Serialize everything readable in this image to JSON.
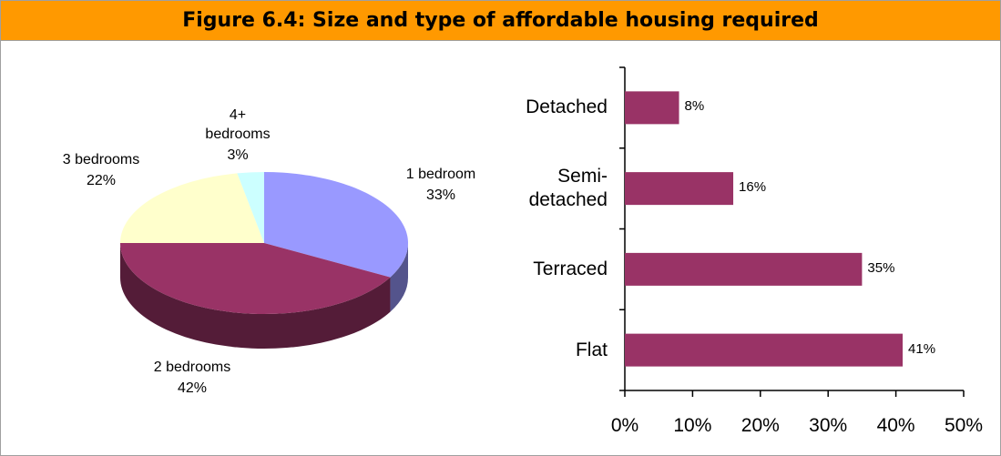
{
  "title": "Figure 6.4: Size and type of affordable housing required",
  "chart_data": [
    {
      "type": "pie",
      "categories": [
        "1 bedroom",
        "2 bedrooms",
        "3 bedrooms",
        "4+ bedrooms"
      ],
      "values": [
        33,
        42,
        22,
        3
      ],
      "value_labels": [
        "33%",
        "42%",
        "22%",
        "3%"
      ],
      "colors": [
        "#9999ff",
        "#993366",
        "#ffffcc",
        "#ccffff"
      ]
    },
    {
      "type": "bar",
      "orientation": "horizontal",
      "categories": [
        "Flat",
        "Terraced",
        "Semi-detached",
        "Detached"
      ],
      "values": [
        41,
        35,
        16,
        8
      ],
      "value_labels": [
        "41%",
        "35%",
        "16%",
        "8%"
      ],
      "color": "#993366",
      "xlim": [
        0,
        50
      ],
      "xticks": [
        {
          "value": 0,
          "label": "0%"
        },
        {
          "value": 10,
          "label": "10%"
        },
        {
          "value": 20,
          "label": "20%"
        },
        {
          "value": 30,
          "label": "30%"
        },
        {
          "value": 40,
          "label": "40%"
        },
        {
          "value": 50,
          "label": "50%"
        }
      ]
    }
  ]
}
